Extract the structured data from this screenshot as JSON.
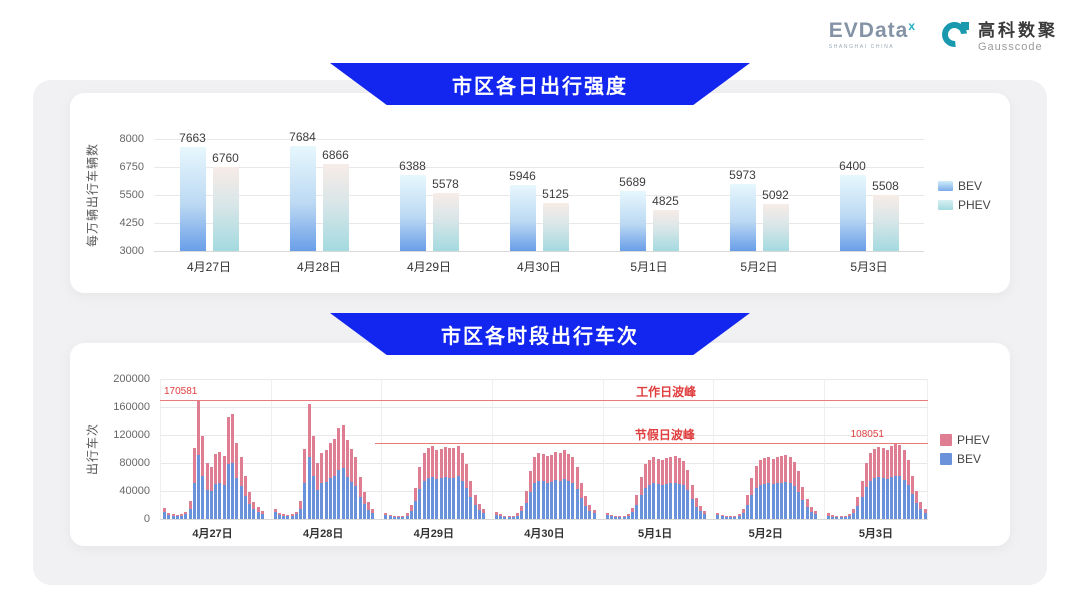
{
  "logo": {
    "evdata_text": "EVData",
    "evdata_sup": "x",
    "evdata_sub": "SHANGHAI CHINA",
    "gausscode_cn": "高科数聚",
    "gausscode_en": "Gausscode",
    "teal": "#1899ad",
    "slate": "#8493a6"
  },
  "colors": {
    "banner_blue": "#1226ef",
    "bev_gradient_top": "#e7f7fd",
    "bev_gradient_bottom": "#699ee8",
    "phev_gradient_top": "#f7ece7",
    "phev_gradient_bottom": "#a3dae0",
    "bev_solid": "#6992da",
    "phev_solid": "#df7d93",
    "annotation_red": "#e03e3e",
    "board_gray": "#f1f1f3"
  },
  "chart_data": [
    {
      "type": "bar",
      "title": "市区各日出行强度",
      "ylabel": "每万辆出行车辆数",
      "ylim": [
        3000,
        8000
      ],
      "yticks": [
        8000,
        6750,
        5500,
        4250,
        3000
      ],
      "grid": true,
      "legend_position": "right",
      "categories": [
        "4月27日",
        "4月28日",
        "4月29日",
        "4月30日",
        "5月1日",
        "5月2日",
        "5月3日"
      ],
      "series": [
        {
          "name": "BEV",
          "values": [
            7663,
            7684,
            6388,
            5946,
            5689,
            5973,
            6400
          ]
        },
        {
          "name": "PHEV",
          "values": [
            6760,
            6866,
            5578,
            5125,
            4825,
            5092,
            5508
          ]
        }
      ]
    },
    {
      "type": "stacked-bar",
      "title": "市区各时段出行车次",
      "ylabel": "出行车次",
      "ylim": [
        0,
        200000
      ],
      "yticks": [
        200000,
        160000,
        120000,
        80000,
        40000,
        0
      ],
      "grid": true,
      "legend_position": "right",
      "legend": [
        "PHEV",
        "BEV"
      ],
      "annotations": [
        {
          "label": "工作日波峰",
          "value": 170581,
          "value_label": "170581"
        },
        {
          "label": "节假日波峰",
          "value": 108051,
          "value_label": "108051"
        }
      ],
      "categories": [
        "4月27日",
        "4月28日",
        "4月29日",
        "4月30日",
        "5月1日",
        "5月2日",
        "5月3日"
      ],
      "days": [
        {
          "label": "4月27日",
          "bev": [
            10000,
            6000,
            4800,
            4200,
            4500,
            6800,
            15000,
            52000,
            91000,
            62000,
            42000,
            40000,
            50000,
            52000,
            49000,
            79000,
            80000,
            58000,
            47000,
            33000,
            21000,
            14000,
            10000,
            7500
          ],
          "phev": [
            6000,
            3000,
            2200,
            1800,
            2000,
            3200,
            11000,
            49000,
            79581,
            57000,
            38000,
            35000,
            43000,
            44000,
            41000,
            67000,
            70000,
            51000,
            42000,
            28000,
            17000,
            11000,
            7000,
            4500
          ]
        },
        {
          "label": "4月28日",
          "bev": [
            9500,
            6000,
            4800,
            4200,
            4500,
            6800,
            15000,
            51000,
            88000,
            62000,
            42000,
            51000,
            53000,
            58000,
            62000,
            70000,
            73000,
            60000,
            53000,
            47000,
            32000,
            21000,
            13500,
            9000
          ],
          "phev": [
            5500,
            3000,
            2200,
            1800,
            2000,
            3200,
            11000,
            49000,
            76000,
            57000,
            38000,
            44000,
            45000,
            50000,
            53000,
            60000,
            62000,
            53000,
            47000,
            41000,
            28000,
            17000,
            10500,
            6000
          ]
        },
        {
          "label": "4月29日",
          "bev": [
            5500,
            3800,
            3200,
            2900,
            3200,
            5000,
            12000,
            26000,
            43000,
            55000,
            59000,
            60000,
            57000,
            58000,
            60000,
            59000,
            58500,
            61000,
            55000,
            45000,
            32000,
            20000,
            13000,
            8500
          ],
          "phev": [
            3500,
            2200,
            1800,
            1600,
            1800,
            3000,
            8000,
            19000,
            32000,
            40000,
            43000,
            44000,
            41000,
            42000,
            43000,
            43000,
            42500,
            44000,
            40000,
            33000,
            23000,
            15000,
            9000,
            5500
          ]
        },
        {
          "label": "4月30日",
          "bev": [
            6000,
            4000,
            3100,
            2800,
            3100,
            5000,
            11000,
            23000,
            39000,
            51000,
            55000,
            54000,
            52000,
            53000,
            56000,
            55000,
            57000,
            54000,
            51000,
            43000,
            30000,
            19000,
            12000,
            8000
          ],
          "phev": [
            4000,
            2500,
            1900,
            1700,
            1900,
            3000,
            7000,
            17000,
            29000,
            37000,
            40000,
            39000,
            38000,
            39000,
            40000,
            40000,
            42000,
            39000,
            37000,
            32000,
            22000,
            14000,
            8000,
            5000
          ]
        },
        {
          "label": "5月1日",
          "bev": [
            5500,
            3700,
            3000,
            2700,
            3000,
            4700,
            9800,
            20000,
            35000,
            45000,
            49000,
            51000,
            50000,
            49000,
            50000,
            52000,
            52000,
            50000,
            48000,
            41000,
            28000,
            17500,
            11000,
            7300
          ],
          "phev": [
            3500,
            2300,
            1800,
            1600,
            1800,
            2800,
            6200,
            15000,
            25000,
            33000,
            36000,
            37000,
            36000,
            35000,
            37000,
            37000,
            38000,
            37000,
            35000,
            29000,
            20000,
            12500,
            7000,
            4700
          ]
        },
        {
          "label": "5月2日",
          "bev": [
            5200,
            3600,
            2900,
            2600,
            2900,
            4500,
            9200,
            19500,
            34000,
            44000,
            49000,
            50000,
            51000,
            50000,
            51000,
            52000,
            53000,
            51000,
            47000,
            39000,
            27000,
            17000,
            10000,
            6800
          ],
          "phev": [
            3300,
            2200,
            1700,
            1600,
            1800,
            2800,
            5800,
            14500,
            24000,
            32000,
            35000,
            37000,
            37000,
            36000,
            37000,
            38000,
            39000,
            37000,
            35000,
            29000,
            19000,
            12000,
            7000,
            4200
          ]
        },
        {
          "label": "5月3日",
          "bev": [
            4900,
            3400,
            2800,
            2500,
            2800,
            4400,
            8600,
            18500,
            32000,
            46000,
            55000,
            58000,
            60000,
            58000,
            57000,
            60000,
            62000,
            61000,
            56000,
            49000,
            36000,
            23000,
            14000,
            9000
          ],
          "phev": [
            3100,
            2100,
            1700,
            1500,
            1700,
            2600,
            5400,
            13500,
            23000,
            34000,
            40000,
            42000,
            43000,
            43000,
            42000,
            44000,
            46051,
            45000,
            42000,
            36000,
            26000,
            17000,
            10000,
            6000
          ]
        }
      ]
    }
  ]
}
